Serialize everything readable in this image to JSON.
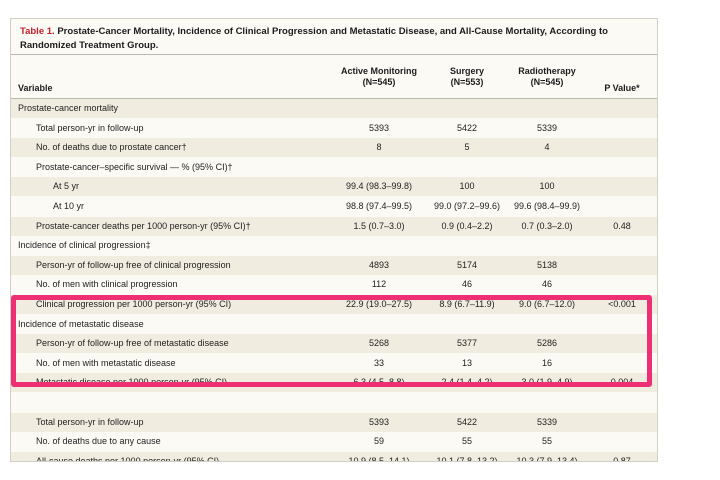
{
  "table": {
    "title_number": "Table 1.",
    "title_text": "Prostate-Cancer Mortality, Incidence of Clinical Progression and Metastatic Disease, and All-Cause Mortality, According to Randomized Treatment Group.",
    "headers": {
      "variable": "Variable",
      "col1_line1": "Active Monitoring",
      "col1_line2": "(N=545)",
      "col2_line1": "Surgery",
      "col2_line2": "(N=553)",
      "col3_line1": "Radiotherapy",
      "col3_line2": "(N=545)",
      "col4": "P Value*"
    },
    "rows": [
      {
        "label": "Prostate-cancer mortality",
        "indent": 0,
        "c1": "",
        "c2": "",
        "c3": "",
        "c4": ""
      },
      {
        "label": "Total person-yr in follow-up",
        "indent": 1,
        "c1": "5393",
        "c2": "5422",
        "c3": "5339",
        "c4": ""
      },
      {
        "label": "No. of deaths due to prostate cancer†",
        "indent": 1,
        "c1": "8",
        "c2": "5",
        "c3": "4",
        "c4": ""
      },
      {
        "label": "Prostate-cancer–specific survival — % (95% CI)†",
        "indent": 1,
        "c1": "",
        "c2": "",
        "c3": "",
        "c4": ""
      },
      {
        "label": "At 5 yr",
        "indent": 2,
        "c1": "99.4 (98.3–99.8)",
        "c2": "100",
        "c3": "100",
        "c4": ""
      },
      {
        "label": "At 10 yr",
        "indent": 2,
        "c1": "98.8 (97.4–99.5)",
        "c2": "99.0 (97.2–99.6)",
        "c3": "99.6 (98.4–99.9)",
        "c4": ""
      },
      {
        "label": "Prostate-cancer deaths per 1000 person-yr (95% CI)†",
        "indent": 1,
        "c1": "1.5 (0.7–3.0)",
        "c2": "0.9 (0.4–2.2)",
        "c3": "0.7 (0.3–2.0)",
        "c4": "0.48"
      },
      {
        "label": "Incidence of clinical progression‡",
        "indent": 0,
        "c1": "",
        "c2": "",
        "c3": "",
        "c4": ""
      },
      {
        "label": "Person-yr of follow-up free of clinical progression",
        "indent": 1,
        "c1": "4893",
        "c2": "5174",
        "c3": "5138",
        "c4": ""
      },
      {
        "label": "No. of men with clinical progression",
        "indent": 1,
        "c1": "112",
        "c2": "46",
        "c3": "46",
        "c4": ""
      },
      {
        "label": "Clinical progression per 1000 person-yr (95% CI)",
        "indent": 1,
        "c1": "22.9 (19.0–27.5)",
        "c2": "8.9 (6.7–11.9)",
        "c3": "9.0 (6.7–12.0)",
        "c4": "<0.001"
      },
      {
        "label": "Incidence of metastatic disease",
        "indent": 0,
        "c1": "",
        "c2": "",
        "c3": "",
        "c4": ""
      },
      {
        "label": "Person-yr of follow-up free of metastatic disease",
        "indent": 1,
        "c1": "5268",
        "c2": "5377",
        "c3": "5286",
        "c4": ""
      },
      {
        "label": "No. of men with metastatic disease",
        "indent": 1,
        "c1": "33",
        "c2": "13",
        "c3": "16",
        "c4": ""
      },
      {
        "label": "Metastatic disease per 1000 person-yr (95% CI)",
        "indent": 1,
        "c1": "6.3 (4.5–8.8)",
        "c2": "2.4 (1.4–4.2)",
        "c3": "3.0 (1.9–4.9)",
        "c4": "0.004"
      },
      {
        "label": "",
        "indent": 0,
        "c1": "",
        "c2": "",
        "c3": "",
        "c4": ""
      },
      {
        "label": "Total person-yr in follow-up",
        "indent": 1,
        "c1": "5393",
        "c2": "5422",
        "c3": "5339",
        "c4": ""
      },
      {
        "label": "No. of deaths due to any cause",
        "indent": 1,
        "c1": "59",
        "c2": "55",
        "c3": "55",
        "c4": ""
      },
      {
        "label": "All-cause deaths per 1000 person-yr (95% CI)",
        "indent": 1,
        "c1": "10.9 (8.5–14.1)",
        "c2": "10.1 (7.8–13.2)",
        "c3": "10.3 (7.9–13.4)",
        "c4": "0.87"
      }
    ]
  },
  "colors": {
    "title_number": "#c8202c",
    "row_shade": "#f1ece0",
    "highlight_border": "#ee2f74"
  }
}
